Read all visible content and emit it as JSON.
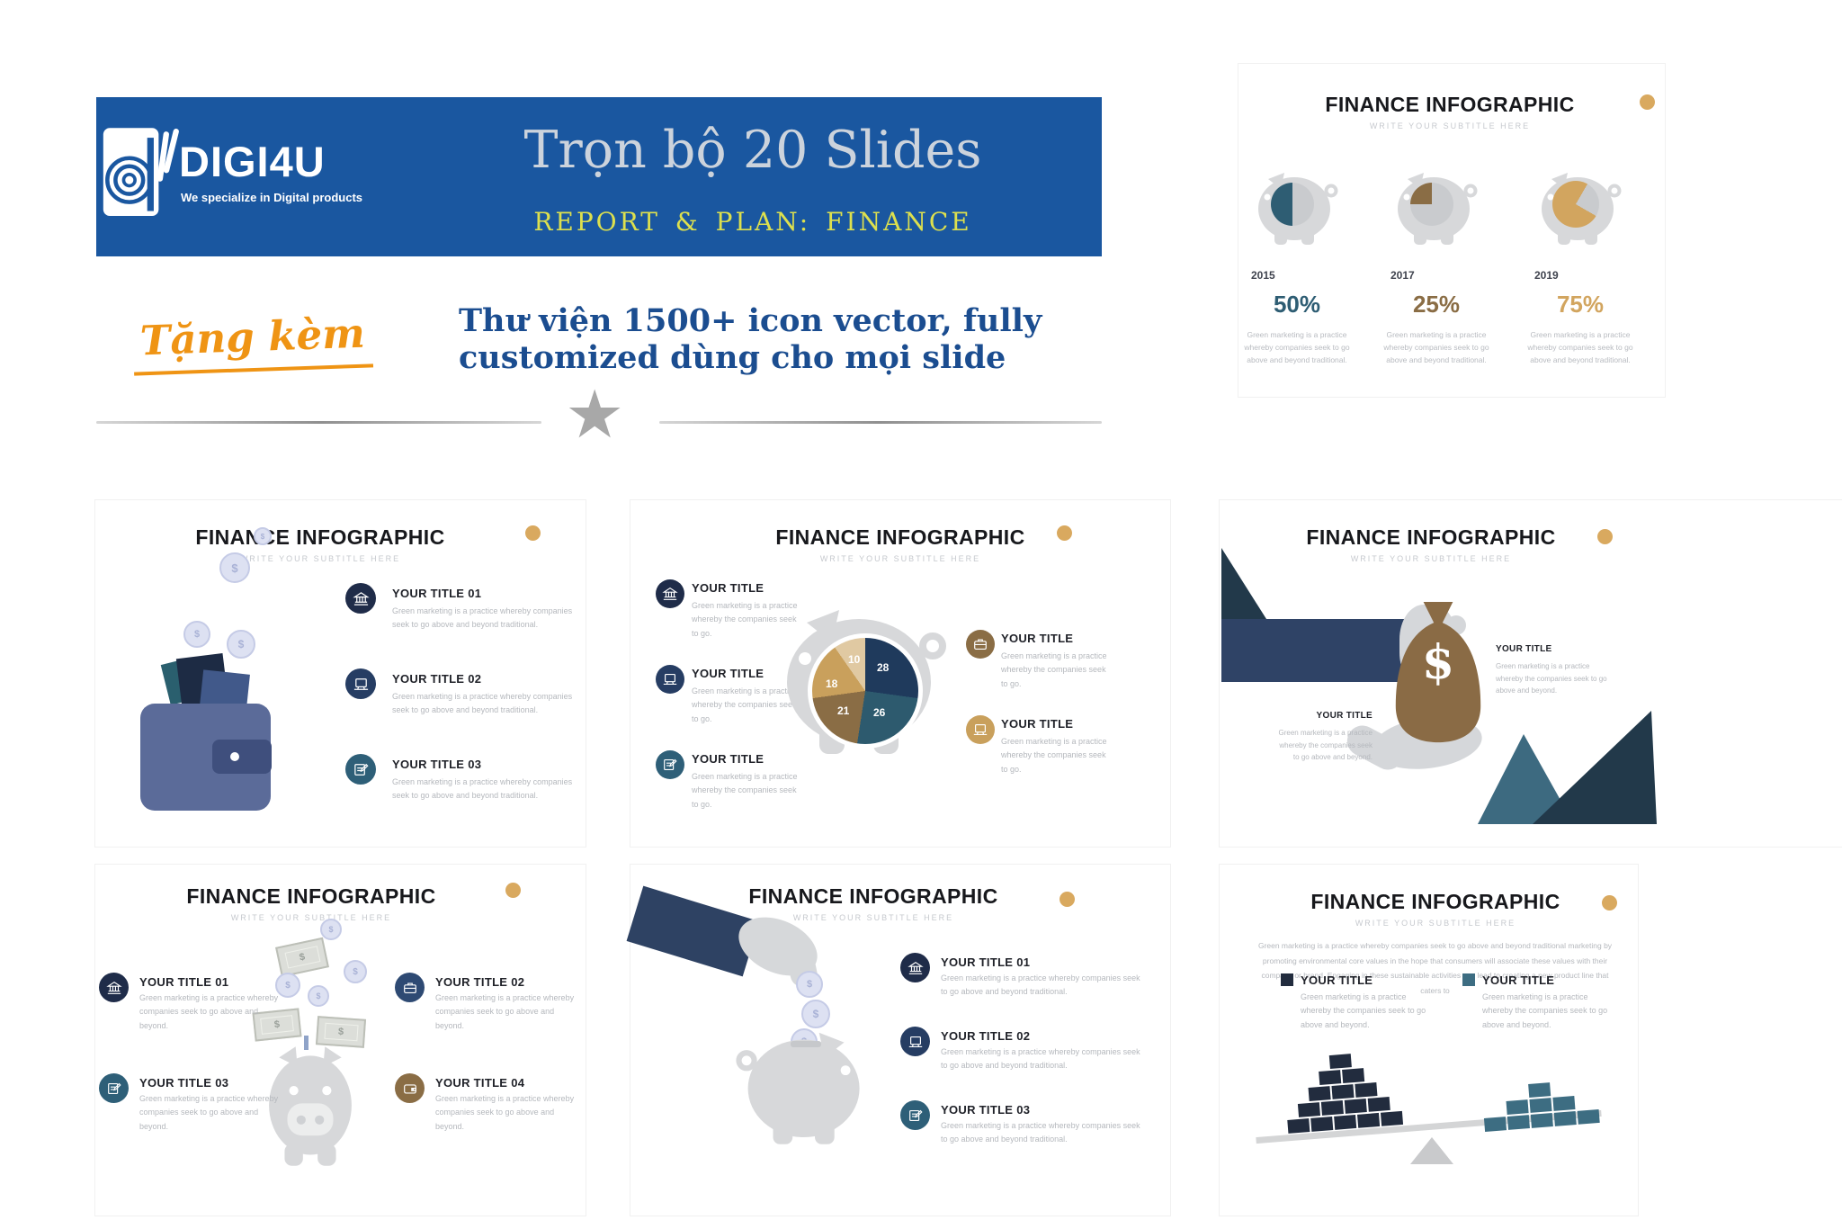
{
  "header": {
    "logo": {
      "name": "DIGI4U",
      "tagline": "We specialize in Digital products"
    },
    "banner": {
      "title": "Trọn bộ 20 Slides",
      "subtitle": "REPORT & PLAN: FINANCE"
    },
    "gift_label": "Tặng kèm",
    "promo_line1": "Thư viện 1500+ icon vector, fully",
    "promo_line2": "customized dùng cho mọi slide"
  },
  "common": {
    "slide_title": "FINANCE INFOGRAPHIC",
    "slide_subtitle": "WRITE YOUR SUBTITLE HERE"
  },
  "slides": {
    "piggy_stats": {
      "stats": [
        {
          "year": "2015",
          "percent": "50%",
          "color": "#2e5d73",
          "desc": "Green marketing is a practice whereby companies seek to go above and beyond traditional."
        },
        {
          "year": "2017",
          "percent": "25%",
          "color": "#8a6d45",
          "desc": "Green marketing is a practice whereby companies seek to go above and beyond traditional."
        },
        {
          "year": "2019",
          "percent": "75%",
          "color": "#d2a55f",
          "desc": "Green marketing is a practice whereby companies seek to go above and beyond traditional."
        }
      ]
    },
    "wallet": {
      "items": [
        {
          "title": "YOUR TITLE 01",
          "desc": "Green marketing is a practice whereby companies seek to go above and beyond traditional."
        },
        {
          "title": "YOUR TITLE 02",
          "desc": "Green marketing is a practice whereby companies seek to go above and beyond traditional."
        },
        {
          "title": "YOUR TITLE 03",
          "desc": "Green marketing is a practice whereby companies seek to go above and beyond traditional."
        }
      ],
      "money_symbol": "$"
    },
    "pie": {
      "left_items": [
        {
          "title": "YOUR TITLE",
          "desc": "Green marketing is a practice whereby the companies seek to go."
        },
        {
          "title": "YOUR TITLE",
          "desc": "Green marketing is a practice whereby the companies seek to go."
        },
        {
          "title": "YOUR TITLE",
          "desc": "Green marketing is a practice whereby the companies seek to go."
        }
      ],
      "right_items": [
        {
          "title": "YOUR TITLE",
          "desc": "Green marketing is a practice whereby the companies seek to go."
        },
        {
          "title": "YOUR TITLE",
          "desc": "Green marketing is a practice whereby the companies seek to go."
        }
      ],
      "chart_data": {
        "type": "pie",
        "labels": [
          "28",
          "26",
          "21",
          "18",
          "10"
        ],
        "values": [
          28,
          26,
          21,
          18,
          10
        ],
        "colors": [
          "#1f3a5c",
          "#2d5a6e",
          "#8a6d45",
          "#c9a05c",
          "#e0c9a2"
        ],
        "start_angle_deg": 0,
        "direction": "clockwise"
      }
    },
    "moneybag": {
      "money_symbol": "$",
      "right_item": {
        "title": "YOUR TITLE",
        "desc": "Green marketing is a practice whereby the companies seek to go above and beyond."
      },
      "left_item": {
        "title": "YOUR TITLE",
        "desc": "Green marketing is a practice whereby the companies seek to go above and beyond."
      }
    },
    "falling": {
      "items": [
        {
          "title": "YOUR TITLE 01",
          "desc": "Green marketing is a practice whereby companies seek to go above and beyond."
        },
        {
          "title": "YOUR TITLE 02",
          "desc": "Green marketing is a practice whereby companies seek to go above and beyond."
        },
        {
          "title": "YOUR TITLE 03",
          "desc": "Green marketing is a practice whereby companies seek to go above and beyond."
        },
        {
          "title": "YOUR TITLE 04",
          "desc": "Green marketing is a practice whereby companies seek to go above and beyond."
        }
      ],
      "money_symbol": "$"
    },
    "coin_drop": {
      "items": [
        {
          "title": "YOUR TITLE 01",
          "desc": "Green marketing is a practice whereby companies seek to go above and beyond traditional."
        },
        {
          "title": "YOUR TITLE 02",
          "desc": "Green marketing is a practice whereby companies seek to go above and beyond traditional."
        },
        {
          "title": "YOUR TITLE 03",
          "desc": "Green marketing is a practice whereby companies seek to go above and beyond traditional."
        }
      ],
      "money_symbol": "$"
    },
    "balance": {
      "paragraph": "Green marketing is a practice whereby companies seek to go above and beyond traditional marketing by promoting environmental core values in the hope that consumers will associate these values with their company or brand. Engaging in these sustainable activities can lead to creating a new product line that caters to",
      "legend": [
        {
          "title": "YOUR TITLE",
          "color": "#222c3e",
          "desc": "Green marketing is a practice whereby the companies seek to go above and beyond."
        },
        {
          "title": "YOUR TITLE",
          "color": "#3d6d82",
          "desc": "Green marketing is a practice whereby the companies seek to go above and beyond."
        }
      ],
      "chart_data": {
        "type": "bar",
        "series": [
          {
            "name": "left-pyramid-navy",
            "brick_rows": [
              1,
              2,
              3,
              4,
              5
            ]
          },
          {
            "name": "right-pyramid-teal",
            "brick_rows": [
              1,
              3,
              5
            ]
          }
        ]
      },
      "left_rows": [
        1,
        2,
        3,
        4,
        5
      ],
      "right_rows": [
        1,
        3,
        5
      ]
    }
  },
  "colors": {
    "banner_blue": "#1a57a0",
    "banner_yellow": "#dde04e",
    "title_silver": "#ccd3dc",
    "promo_blue": "#1b4d90",
    "gift_orange": "#ef9414",
    "navy": "#1f2c49",
    "navy2": "#263d63",
    "teal": "#2e5f78",
    "brown": "#8a6d45",
    "gold": "#c9a05c",
    "pig_gray": "#d7d8da",
    "badge_gold": "#d9a95f",
    "text_gray": "#b5b8bd"
  }
}
